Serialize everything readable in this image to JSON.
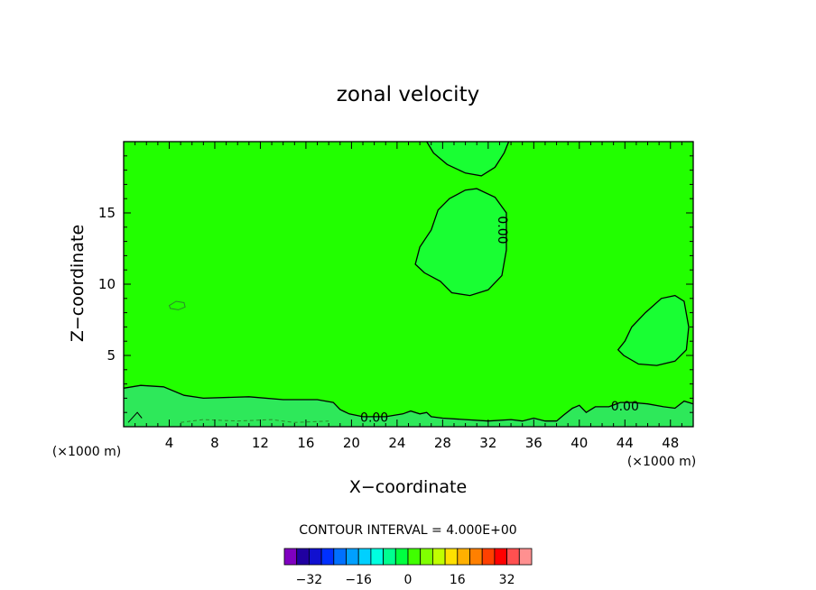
{
  "chart_data": {
    "type": "contour",
    "title": "zonal velocity",
    "xlabel": "X−coordinate",
    "ylabel": "Z−coordinate",
    "x_unit_left": "(×1000 m)",
    "x_unit_right": "(×1000 m)",
    "xlim": [
      0,
      50
    ],
    "ylim": [
      0,
      20
    ],
    "xticks": [
      4,
      8,
      12,
      16,
      20,
      24,
      28,
      32,
      36,
      40,
      44,
      48
    ],
    "yticks": [
      5,
      10,
      15
    ],
    "contour_labels": [
      {
        "text": "0.00",
        "x": 33.2,
        "y": 13.8,
        "rotation": 90
      },
      {
        "text": "0.00",
        "x": 22.0,
        "y": 0.6,
        "rotation": 0
      },
      {
        "text": "0.00",
        "x": 44.0,
        "y": 1.4,
        "rotation": 0
      }
    ],
    "contour_interval_text": "CONTOUR INTERVAL =  4.000E+00",
    "colorbar": {
      "ticks": [
        "−32",
        "−16",
        "0",
        "16",
        "32"
      ],
      "tick_values": [
        -32,
        -16,
        0,
        16,
        32
      ],
      "range": [
        -40,
        40
      ],
      "colors": [
        "#8000c0",
        "#2000a0",
        "#1010d0",
        "#0030ff",
        "#0070ff",
        "#00a0ff",
        "#00d0ff",
        "#00ffe0",
        "#00ff90",
        "#00ff40",
        "#40ff00",
        "#80ff00",
        "#c0ff00",
        "#ffe000",
        "#ffb000",
        "#ff8000",
        "#ff4000",
        "#ff0000",
        "#ff5050",
        "#ff9090"
      ]
    },
    "colors": {
      "background_field": "#22ff00",
      "positive_region": "#19ff33",
      "lower_band": "#2ee85a"
    }
  }
}
